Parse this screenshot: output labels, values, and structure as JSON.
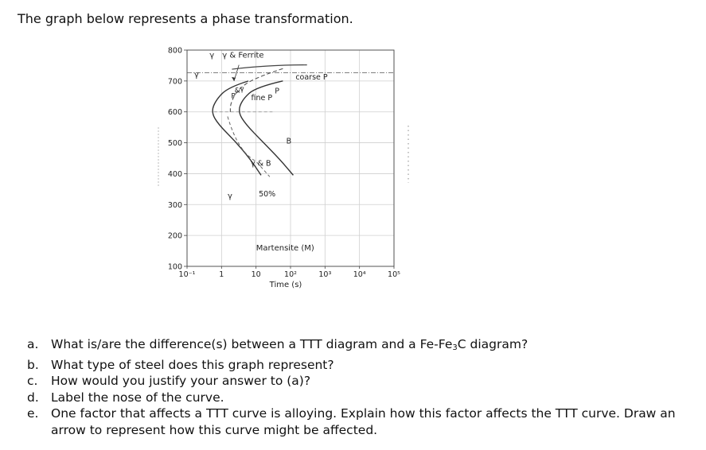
{
  "intro": "The graph below represents a phase transformation.",
  "chart_data": {
    "type": "line",
    "title": "",
    "xlabel": "Time (s)",
    "ylabel": "",
    "x_scale": "log",
    "xlim": [
      0.1,
      100000
    ],
    "ylim": [
      100,
      800
    ],
    "x_ticks": [
      "10⁻¹",
      "1",
      "10",
      "10²",
      "10³",
      "10⁴",
      "10⁵"
    ],
    "x_tick_values": [
      0.1,
      1,
      10,
      100,
      1000,
      10000,
      100000
    ],
    "y_ticks": [
      "800",
      "700",
      "600",
      "500",
      "400",
      "300",
      "200",
      "100"
    ],
    "y_tick_values": [
      800,
      700,
      600,
      500,
      400,
      300,
      200,
      100
    ],
    "grid": true,
    "series": [
      {
        "values": [
          [
            6.0,
            700
          ],
          [
            1.6,
            680
          ],
          [
            0.7,
            640
          ],
          [
            0.5,
            600
          ],
          [
            0.8,
            560
          ],
          [
            2.5,
            505
          ],
          [
            7,
            445
          ],
          [
            14,
            395
          ]
        ]
      },
      {
        "values": [
          [
            60,
            700
          ],
          [
            10,
            680
          ],
          [
            4,
            640
          ],
          [
            3,
            600
          ],
          [
            5,
            560
          ],
          [
            15,
            505
          ],
          [
            50,
            445
          ],
          [
            120,
            395
          ]
        ]
      },
      {
        "values": [
          [
            60,
            740
          ],
          [
            9,
            710
          ],
          [
            2.8,
            670
          ],
          [
            1.8,
            625
          ],
          [
            1.8,
            600
          ]
        ]
      }
    ],
    "annotations": {
      "y_left_top": "γ",
      "y_left_mid": "γ",
      "gamma_ferrite": "γ & Ferrite",
      "p_amp_gamma_p": "P",
      "p_amp_gamma_amp": "&",
      "p_amp_gamma_g": "γ",
      "fine_p": "fine P",
      "p_label": "P",
      "coarse_p": "coarse P",
      "b_label": "B",
      "gamma_b": "γ & B",
      "gamma_low": "γ",
      "fifty": "50%",
      "martensite": "Martensite (M)"
    }
  },
  "questions": [
    {
      "letter": "a.",
      "text": "What is/are the difference(s) between a TTT diagram and a Fe-Fe",
      "sub": "3",
      "tail": "C diagram?"
    },
    {
      "letter": "b.",
      "text": "What type of steel does this graph represent?"
    },
    {
      "letter": "c.",
      "text": "How would you justify your answer to (a)?"
    },
    {
      "letter": "d.",
      "text": "Label the nose of the curve."
    },
    {
      "letter": "e.",
      "text": "One factor that affects a TTT curve is alloying.  Explain how this factor affects the TTT curve.  Draw an arrow to represent how this curve might be affected."
    }
  ]
}
